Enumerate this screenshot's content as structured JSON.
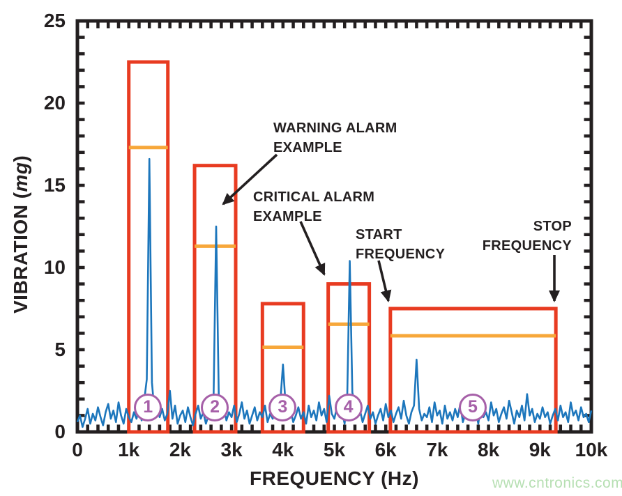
{
  "watermark": {
    "text": "www.cntronics.com",
    "color": "#b6dfb2"
  },
  "chart_data": {
    "type": "line",
    "title": "",
    "xlabel": "FREQUENCY (Hz)",
    "ylabel": "VIBRATION (mg)",
    "ylabel_parts": {
      "prefix": "VIBRATION (",
      "italic": "mg",
      "suffix": ")"
    },
    "xlim": [
      0,
      10000
    ],
    "ylim": [
      0,
      25
    ],
    "grid": "off",
    "legend": "none",
    "x_ticks": [
      0,
      1000,
      2000,
      3000,
      4000,
      5000,
      6000,
      7000,
      8000,
      9000,
      10000
    ],
    "x_tick_labels": [
      "0",
      "1k",
      "2k",
      "3k",
      "4k",
      "5k",
      "6k",
      "7k",
      "8k",
      "9k",
      "10k"
    ],
    "y_ticks": [
      0,
      5,
      10,
      15,
      20,
      25
    ],
    "y_tick_labels": [
      "0",
      "5",
      "10",
      "15",
      "20",
      "25"
    ],
    "x_minor_tick_step_hz": 200,
    "y_minor_tick_step_mg": 1,
    "colors": {
      "axis": "#231f20",
      "signal": "#1c76bc",
      "critical_box": "#e83b21",
      "warning_line": "#f7a73a",
      "band_circle": "#a660a8",
      "annotation": "#231f20"
    },
    "signal": {
      "unit_x": "Hz",
      "unit_y": "mg",
      "x_start": 0,
      "x_step": 50,
      "values": [
        0.6,
        1.0,
        0.3,
        0.8,
        1.4,
        0.5,
        1.1,
        0.7,
        1.5,
        0.9,
        0.4,
        1.2,
        1.7,
        0.8,
        1.3,
        0.6,
        1.8,
        1.0,
        0.5,
        1.4,
        0.9,
        0.6,
        1.2,
        0.8,
        1.5,
        0.7,
        1.9,
        3.2,
        16.6,
        3.0,
        1.2,
        1.7,
        0.9,
        1.4,
        0.7,
        1.1,
        2.5,
        0.8,
        1.6,
        0.5,
        1.0,
        1.3,
        0.6,
        1.5,
        0.9,
        0.4,
        1.1,
        1.6,
        0.8,
        1.2,
        0.5,
        1.0,
        1.4,
        2.1,
        12.5,
        2.3,
        1.0,
        1.5,
        0.7,
        1.2,
        0.9,
        1.6,
        0.6,
        1.1,
        1.8,
        0.8,
        1.3,
        0.5,
        1.0,
        1.5,
        0.7,
        1.2,
        0.9,
        1.6,
        0.6,
        1.1,
        0.8,
        1.4,
        1.0,
        1.9,
        4.1,
        1.7,
        0.9,
        1.3,
        0.6,
        1.0,
        1.5,
        0.8,
        1.2,
        0.5,
        1.6,
        0.9,
        1.3,
        0.7,
        1.8,
        1.0,
        1.4,
        0.6,
        2.2,
        1.1,
        0.8,
        1.5,
        0.9,
        1.2,
        0.5,
        2.0,
        10.4,
        2.4,
        1.7,
        0.9,
        1.3,
        0.6,
        1.1,
        1.6,
        0.8,
        1.2,
        0.5,
        1.0,
        1.4,
        0.7,
        1.7,
        0.9,
        1.3,
        0.6,
        1.1,
        1.5,
        0.8,
        1.9,
        1.0,
        0.5,
        1.2,
        1.6,
        4.4,
        1.4,
        0.7,
        1.1,
        0.9,
        1.5,
        0.6,
        1.8,
        1.0,
        1.3,
        0.5,
        1.6,
        0.8,
        1.2,
        0.7,
        1.4,
        0.9,
        1.7,
        0.6,
        1.1,
        1.5,
        0.8,
        1.0,
        1.3,
        0.5,
        1.6,
        0.9,
        1.2,
        0.7,
        1.8,
        1.0,
        1.4,
        0.6,
        1.1,
        1.5,
        0.8,
        1.9,
        1.2,
        0.5,
        1.3,
        0.9,
        1.6,
        0.7,
        2.3,
        1.0,
        1.4,
        0.6,
        1.1,
        0.8,
        1.5,
        0.9,
        1.2,
        0.5,
        1.0,
        1.4,
        0.7,
        1.6,
        0.9,
        1.2,
        0.6,
        1.8,
        1.0,
        1.3,
        0.7,
        1.5,
        0.9,
        1.1,
        0.6,
        1.3
      ]
    },
    "major_peaks": [
      {
        "hz": 1400,
        "mg": 16.6
      },
      {
        "hz": 2700,
        "mg": 12.5
      },
      {
        "hz": 4000,
        "mg": 4.1
      },
      {
        "hz": 5300,
        "mg": 10.4
      },
      {
        "hz": 6600,
        "mg": 4.4
      }
    ],
    "bands": [
      {
        "label": "1",
        "start_hz": 1000,
        "stop_hz": 1760,
        "critical_mg": 22.5,
        "warning_mg": 17.3
      },
      {
        "label": "2",
        "start_hz": 2280,
        "stop_hz": 3080,
        "critical_mg": 16.2,
        "warning_mg": 11.3
      },
      {
        "label": "3",
        "start_hz": 3600,
        "stop_hz": 4400,
        "critical_mg": 7.8,
        "warning_mg": 5.15
      },
      {
        "label": "4",
        "start_hz": 4880,
        "stop_hz": 5680,
        "critical_mg": 9.0,
        "warning_mg": 6.55
      },
      {
        "label": "5",
        "start_hz": 6090,
        "stop_hz": 9310,
        "critical_mg": 7.5,
        "warning_mg": 5.85
      }
    ],
    "annotations": {
      "warning_alarm": {
        "line1": "WARNING ALARM",
        "line2": "EXAMPLE"
      },
      "critical_alarm": {
        "line1": "CRITICAL ALARM",
        "line2": "EXAMPLE"
      },
      "start_frequency": {
        "line1": "START",
        "line2": "FREQUENCY"
      },
      "stop_frequency": {
        "line1": "STOP",
        "line2": "FREQUENCY"
      }
    }
  }
}
